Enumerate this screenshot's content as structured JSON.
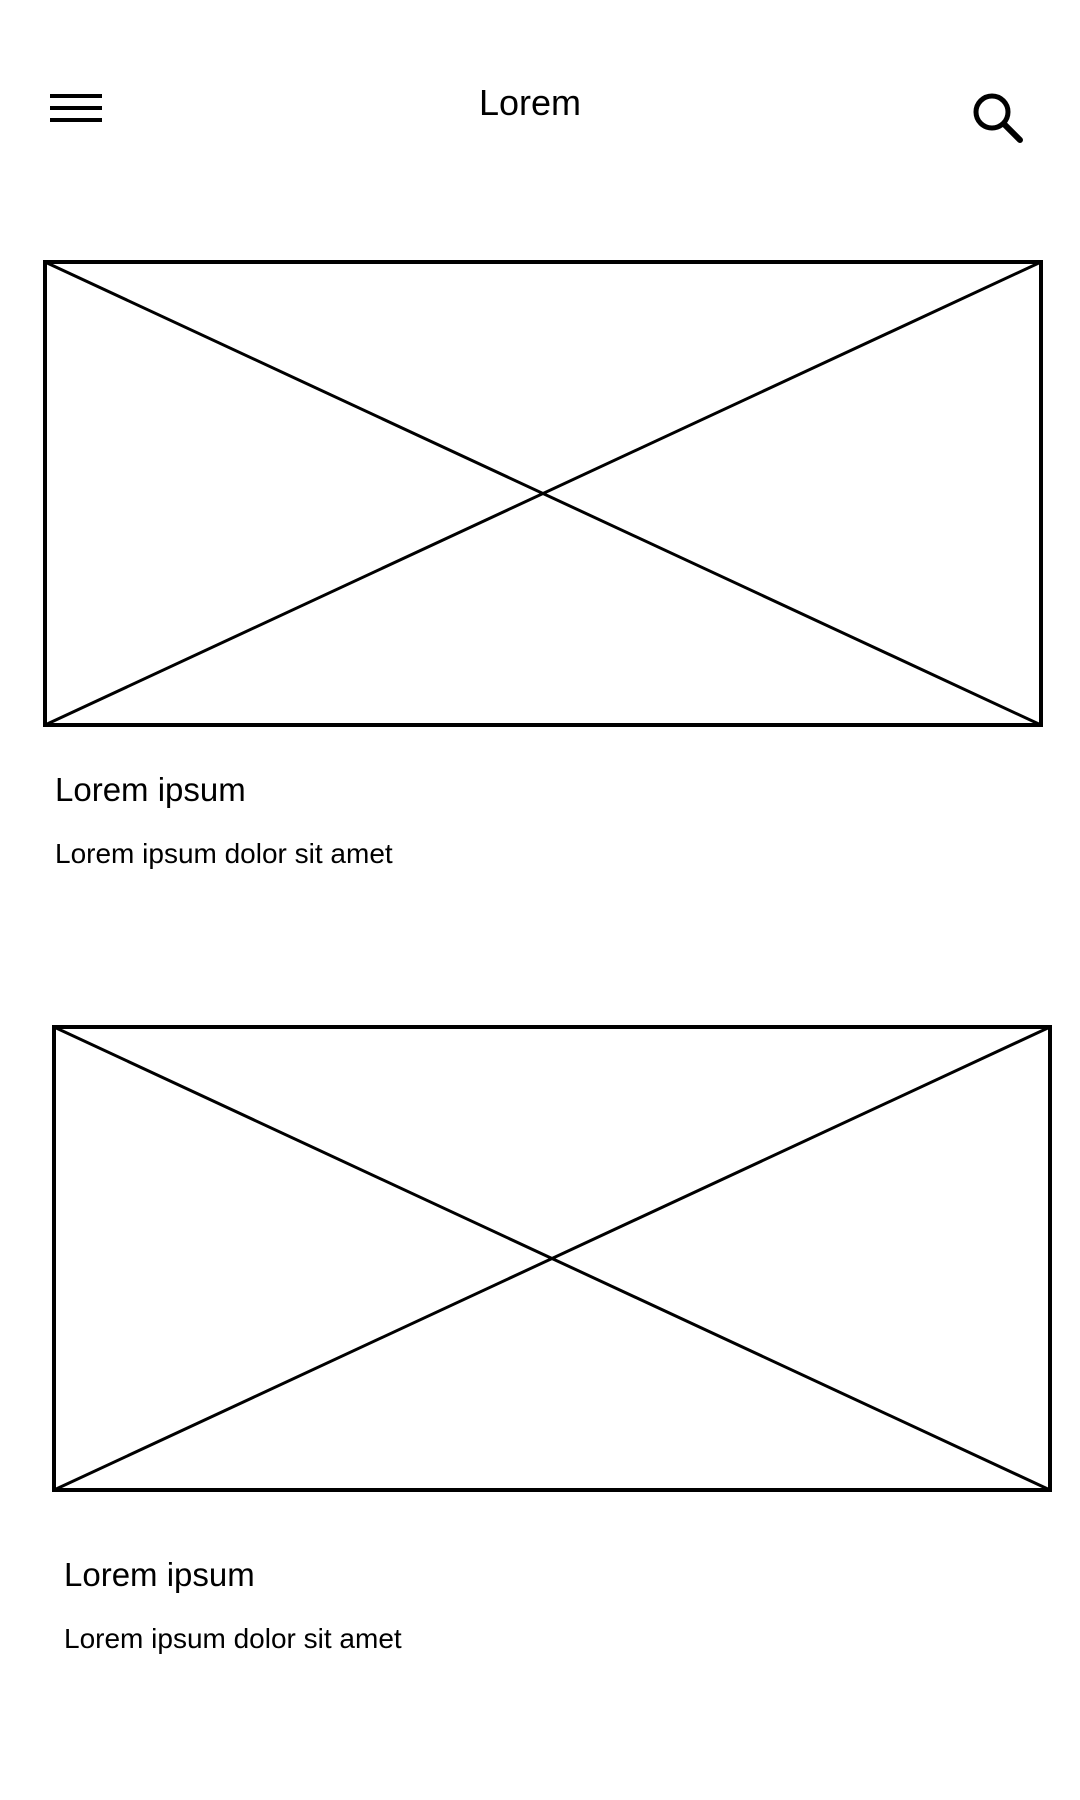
{
  "header": {
    "menu_icon": "hamburger-menu-icon",
    "title": "Lorem",
    "search_icon": "search-icon"
  },
  "cards": [
    {
      "image": "image-placeholder",
      "title": "Lorem ipsum",
      "subtitle": "Lorem ipsum dolor sit amet"
    },
    {
      "image": "image-placeholder",
      "title": "Lorem ipsum",
      "subtitle": "Lorem ipsum dolor sit amet"
    }
  ],
  "colors": {
    "stroke": "#000000",
    "background": "#ffffff"
  }
}
